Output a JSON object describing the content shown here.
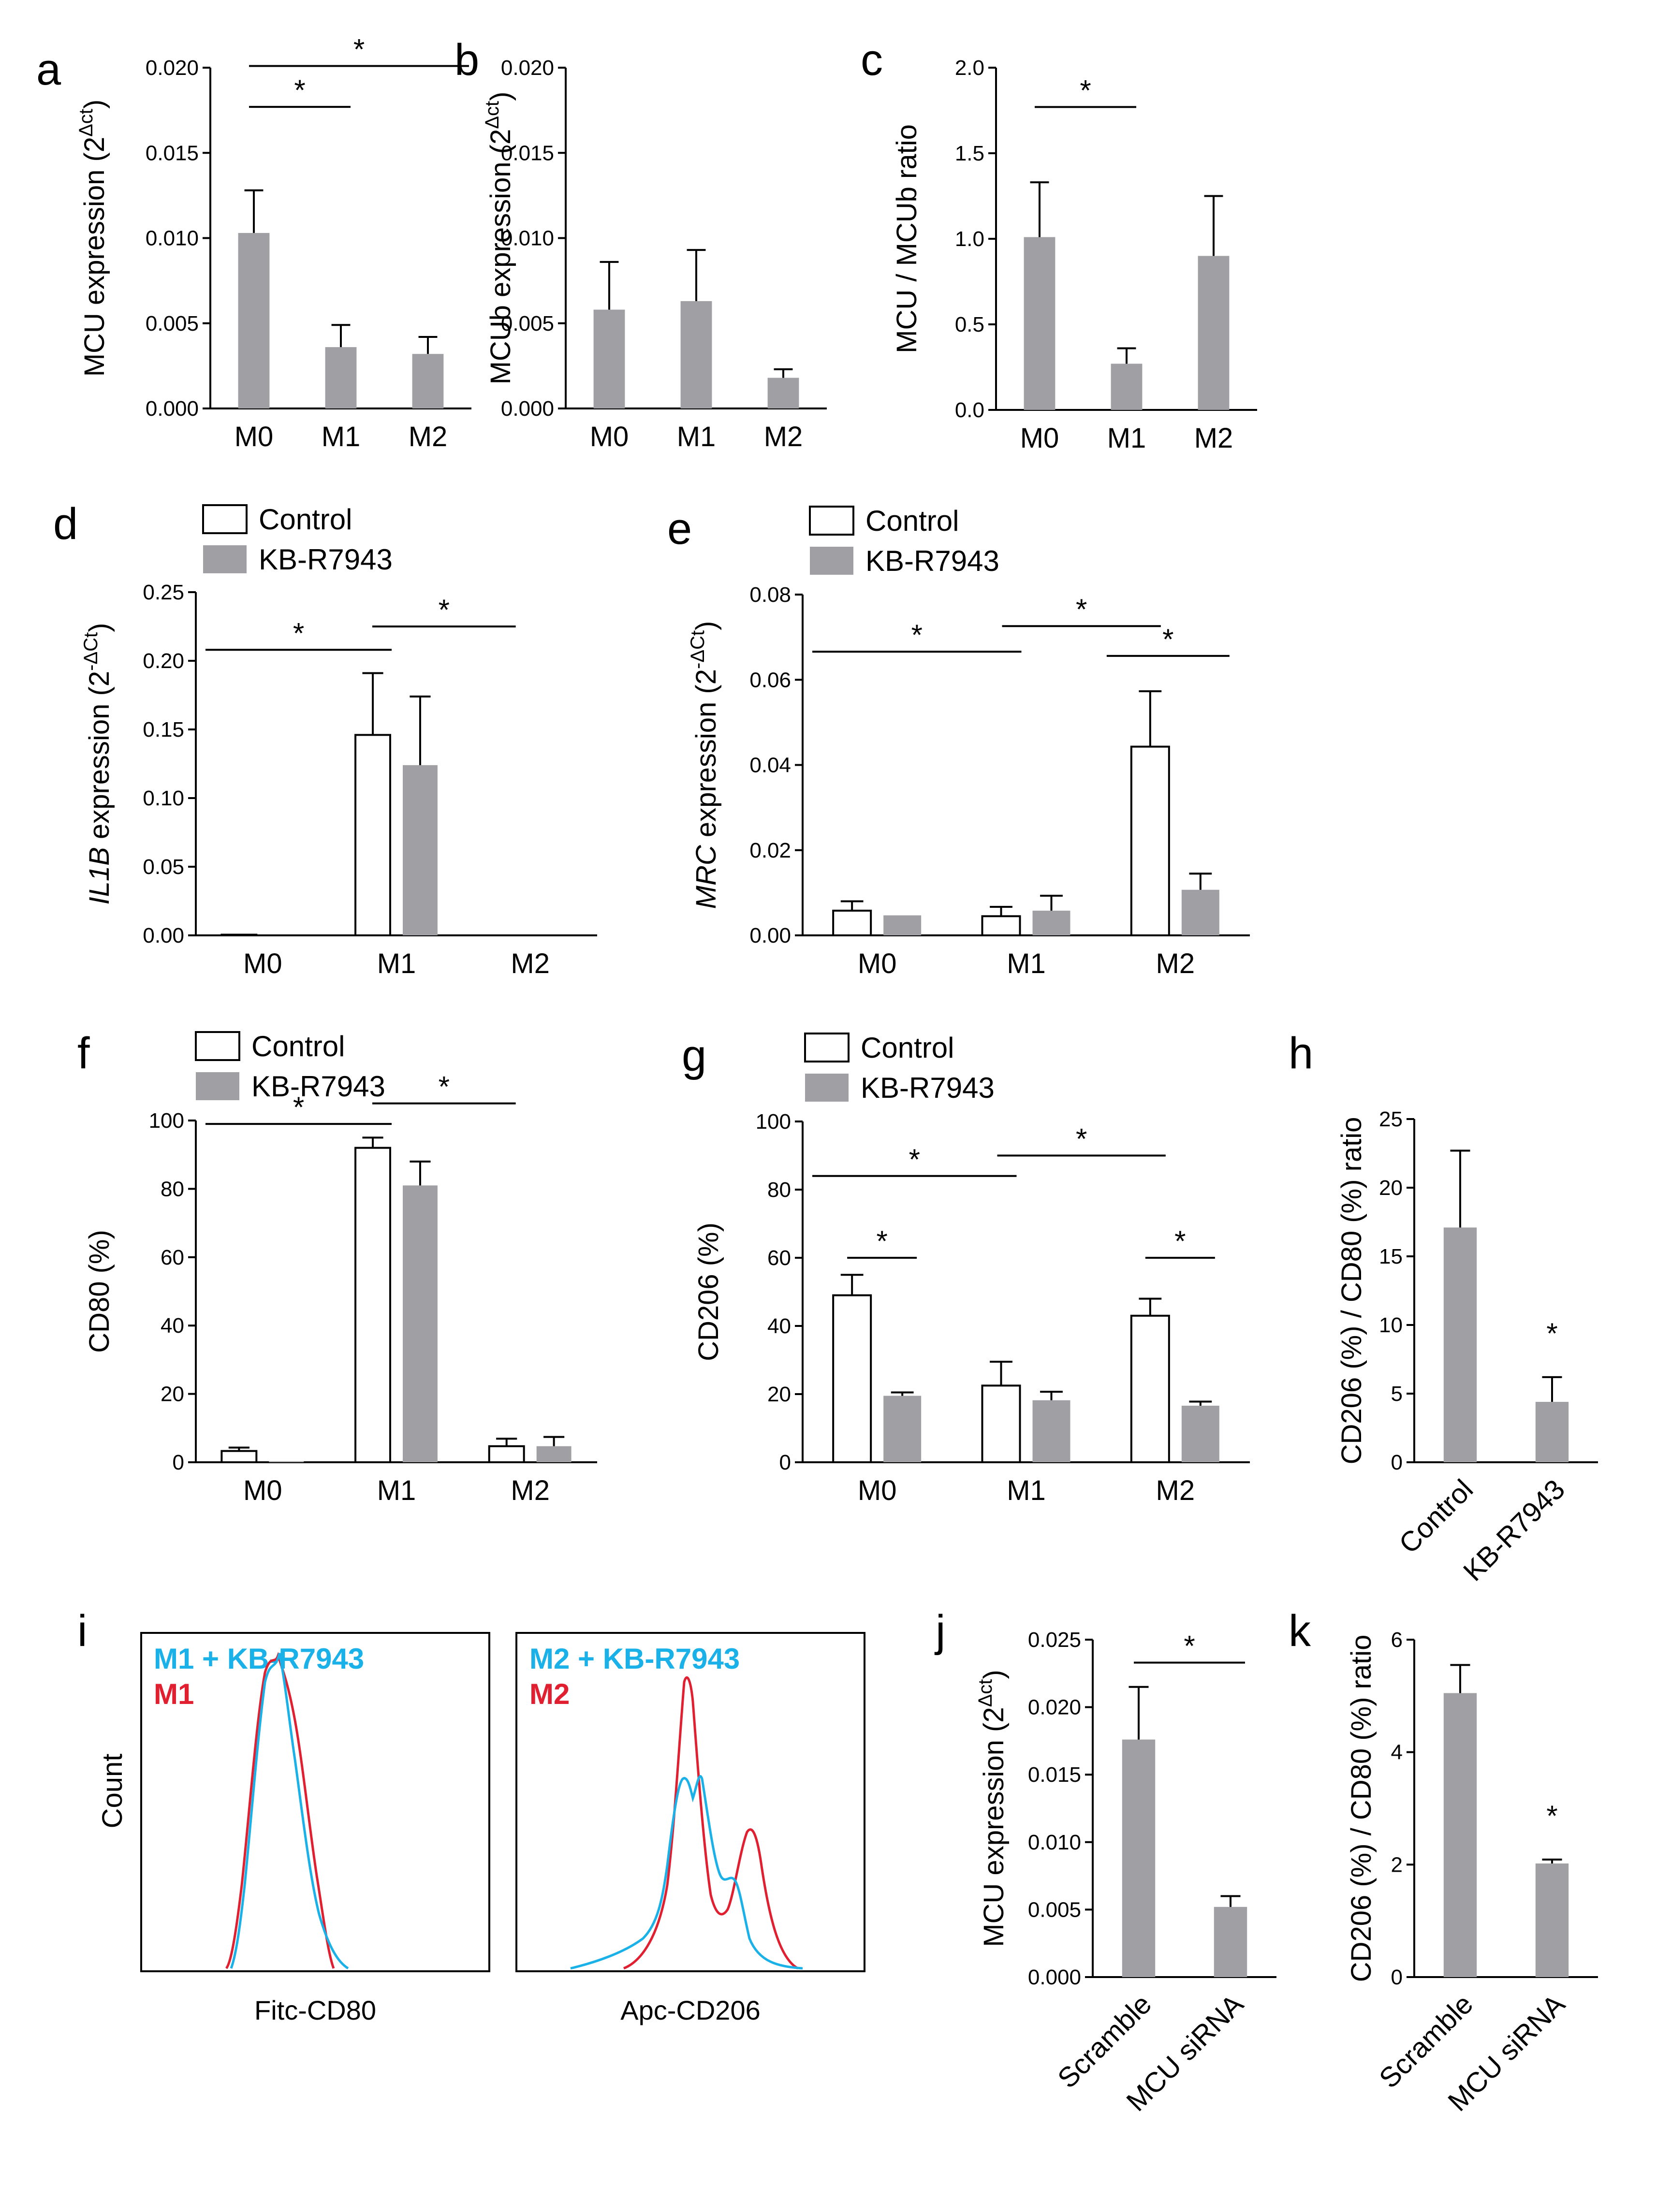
{
  "colors": {
    "gray": "#a0a0a4",
    "white": "#ffffff",
    "stroke": "#000000",
    "cyan": "#1ab0e8",
    "red": "#e02030"
  },
  "legend": {
    "control": "Control",
    "treated": "KB-R7943"
  },
  "chart_data": [
    {
      "id": "a",
      "type": "bar",
      "panel_label": "a",
      "ylabel": "MCU expression (2",
      "ylabel_sup": "Δct",
      "ylabel_close": ")",
      "ylim": [
        0,
        0.02
      ],
      "yticks": [
        "0.000",
        "0.005",
        "0.010",
        "0.015",
        "0.020"
      ],
      "categories": [
        "M0",
        "M1",
        "M2"
      ],
      "series": [
        {
          "name": "MCU",
          "values": [
            0.0103,
            0.0036,
            0.0032
          ],
          "errors": [
            0.0025,
            0.0013,
            0.001
          ]
        }
      ],
      "significance": [
        {
          "from": 0,
          "to": 1,
          "y": 0.0177,
          "label": "*"
        },
        {
          "from": 0,
          "to": 2,
          "y": 0.0201,
          "label": "*"
        }
      ]
    },
    {
      "id": "b",
      "type": "bar",
      "panel_label": "b",
      "ylabel": "MCUb expression (2",
      "ylabel_sup": "Δct",
      "ylabel_close": ")",
      "ylim": [
        0,
        0.02
      ],
      "yticks": [
        "0.000",
        "0.005",
        "0.010",
        "0.015",
        "0.020"
      ],
      "categories": [
        "M0",
        "M1",
        "M2"
      ],
      "series": [
        {
          "name": "MCUb",
          "values": [
            0.0058,
            0.0063,
            0.0018
          ],
          "errors": [
            0.0028,
            0.003,
            0.0005
          ]
        }
      ],
      "significance": []
    },
    {
      "id": "c",
      "type": "bar",
      "panel_label": "c",
      "ylabel": "MCU / MCUb ratio",
      "ylim": [
        0,
        2.0
      ],
      "yticks": [
        "0.0",
        "0.5",
        "1.0",
        "1.5",
        "2.0"
      ],
      "categories": [
        "M0",
        "M1",
        "M2"
      ],
      "series": [
        {
          "name": "ratio",
          "values": [
            1.01,
            0.27,
            0.9
          ],
          "errors": [
            0.32,
            0.09,
            0.35
          ]
        }
      ],
      "significance": [
        {
          "from": 0,
          "to": 1,
          "y": 1.77,
          "label": "*"
        }
      ]
    },
    {
      "id": "d",
      "type": "bar",
      "panel_label": "d",
      "ylabel_italic": "IL1B",
      "ylabel": " expression (2",
      "ylabel_sup": "-ΔCt",
      "ylabel_close": ")",
      "ylim": [
        0,
        0.25
      ],
      "yticks": [
        "0.00",
        "0.05",
        "0.10",
        "0.15",
        "0.20",
        "0.25"
      ],
      "categories": [
        "M0",
        "M1",
        "M2"
      ],
      "series": [
        {
          "name": "Control",
          "values": [
            0.0005,
            0.146,
            0.0
          ],
          "errors": [
            0,
            0.045,
            0
          ]
        },
        {
          "name": "KB-R7943",
          "values": [
            0.0,
            0.124,
            0.0
          ],
          "errors": [
            0,
            0.05,
            0
          ]
        }
      ],
      "significance": [
        {
          "from": 0,
          "to": 1,
          "y": 0.208,
          "label": "*"
        },
        {
          "from": 1,
          "to": 2,
          "y": 0.225,
          "label": "*"
        }
      ]
    },
    {
      "id": "e",
      "type": "bar",
      "panel_label": "e",
      "ylabel_italic": "MRC",
      "ylabel": " expression (2",
      "ylabel_sup": "-ΔCt",
      "ylabel_close": ")",
      "ylim": [
        0,
        0.08
      ],
      "yticks": [
        "0.00",
        "0.02",
        "0.04",
        "0.06",
        "0.08"
      ],
      "categories": [
        "M0",
        "M1",
        "M2"
      ],
      "series": [
        {
          "name": "Control",
          "values": [
            0.0058,
            0.0045,
            0.0443
          ],
          "errors": [
            0.0022,
            0.0022,
            0.013
          ]
        },
        {
          "name": "KB-R7943",
          "values": [
            0.0047,
            0.0058,
            0.0107
          ],
          "errors": [
            0,
            0.0035,
            0.0038
          ]
        }
      ],
      "significance": [
        {
          "from": 0,
          "to": 1,
          "y": 0.0666,
          "label": "*"
        },
        {
          "from": 1,
          "to": 2,
          "y": 0.0726,
          "label": "*"
        },
        {
          "from": 2,
          "to": 3,
          "y": 0.0656,
          "label": "*"
        }
      ]
    },
    {
      "id": "f",
      "type": "bar",
      "panel_label": "f",
      "ylabel": "CD80 (%)",
      "ylim": [
        0,
        100
      ],
      "yticks": [
        "0",
        "20",
        "40",
        "60",
        "80",
        "100"
      ],
      "categories": [
        "M0",
        "M1",
        "M2"
      ],
      "series": [
        {
          "name": "Control",
          "values": [
            3.3,
            92,
            4.7
          ],
          "errors": [
            1.0,
            3.0,
            2.2
          ]
        },
        {
          "name": "KB-R7943",
          "values": [
            0.3,
            81,
            4.7
          ],
          "errors": [
            0,
            7,
            2.7
          ]
        }
      ],
      "significance": [
        {
          "from": 0,
          "to": 1,
          "y": 99,
          "label": "*"
        },
        {
          "from": 1,
          "to": 2,
          "y": 105,
          "label": "*"
        }
      ]
    },
    {
      "id": "g",
      "type": "bar",
      "panel_label": "g",
      "ylabel": "CD206 (%)",
      "ylim": [
        0,
        100
      ],
      "yticks": [
        "0",
        "20",
        "40",
        "60",
        "80",
        "100"
      ],
      "categories": [
        "M0",
        "M1",
        "M2"
      ],
      "series": [
        {
          "name": "Control",
          "values": [
            49,
            22.5,
            43
          ],
          "errors": [
            6,
            7,
            5
          ]
        },
        {
          "name": "KB-R7943",
          "values": [
            19.5,
            18.2,
            16.6
          ],
          "errors": [
            1,
            2.5,
            1.2
          ]
        }
      ],
      "significance": [
        {
          "from": 0,
          "to": 0.9,
          "y": 60,
          "label": "*"
        },
        {
          "from": 0,
          "to": 1,
          "y": 84,
          "label": "*"
        },
        {
          "from": 1,
          "to": 2,
          "y": 90,
          "label": "*"
        },
        {
          "from": 2,
          "to": 2.9,
          "y": 60,
          "label": "*"
        }
      ]
    },
    {
      "id": "h",
      "type": "bar",
      "panel_label": "h",
      "ylabel": "CD206 (%) / CD80 (%) ratio",
      "ylim": [
        0,
        25
      ],
      "yticks": [
        "0",
        "5",
        "10",
        "15",
        "20",
        "25"
      ],
      "categories": [
        "Control",
        "KB-R7943"
      ],
      "series": [
        {
          "name": "ratio",
          "values": [
            17.1,
            4.4
          ],
          "errors": [
            5.6,
            1.8
          ]
        }
      ],
      "annotations": [
        {
          "index": 1,
          "label": "*"
        }
      ]
    },
    {
      "id": "j",
      "type": "bar",
      "panel_label": "j",
      "ylabel": "MCU expression (2",
      "ylabel_sup": "Δct",
      "ylabel_close": ")",
      "ylim": [
        0,
        0.025
      ],
      "yticks": [
        "0.000",
        "0.005",
        "0.010",
        "0.015",
        "0.020",
        "0.025"
      ],
      "categories": [
        "Scramble",
        "MCU siRNA"
      ],
      "series": [
        {
          "name": "MCU",
          "values": [
            0.0176,
            0.0052
          ],
          "errors": [
            0.0039,
            0.0008
          ]
        }
      ],
      "significance": [
        {
          "from": 0,
          "to": 1,
          "y": 0.0233,
          "label": "*"
        }
      ]
    },
    {
      "id": "k",
      "type": "bar",
      "panel_label": "k",
      "ylabel": "CD206 (%) / CD80 (%) ratio",
      "ylim": [
        0,
        6
      ],
      "yticks": [
        "0",
        "2",
        "4",
        "6"
      ],
      "categories": [
        "Scramble",
        "MCU siRNA"
      ],
      "series": [
        {
          "name": "ratio",
          "values": [
            5.05,
            2.02
          ],
          "errors": [
            0.5,
            0.07
          ]
        }
      ],
      "annotations": [
        {
          "index": 1,
          "label": "*"
        }
      ]
    }
  ],
  "histograms": {
    "panel_label": "i",
    "ylabel": "Count",
    "left": {
      "xlabel": "Fitc-CD80",
      "legend": [
        "M1 + KB-R7943",
        "M1"
      ]
    },
    "right": {
      "xlabel": "Apc-CD206",
      "legend": [
        "M2 + KB-R7943",
        "M2"
      ]
    }
  }
}
